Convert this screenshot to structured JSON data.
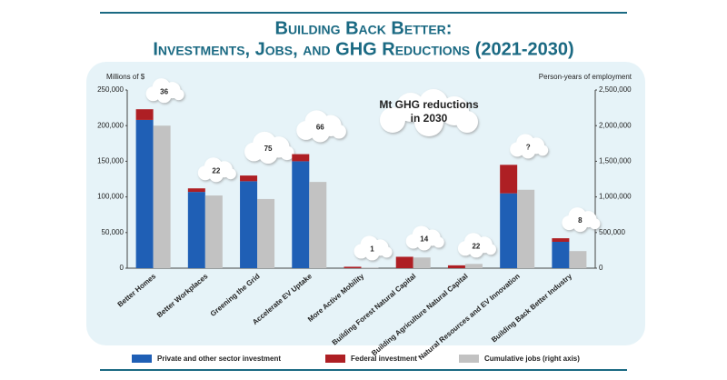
{
  "chart_data": {
    "type": "stacked-bar-dual",
    "title": "Building Back Better:",
    "subtitle": "Investments, Jobs, and GHG Reductions (2021-2030)",
    "y_label": "Millions of $",
    "y2_label": "Person-years of employment",
    "categories": [
      "Better Homes",
      "Better Workplaces",
      "Greening the Grid",
      "Accelerate EV Uptake",
      "More Active Mobility",
      "Building Forest Natural Capital",
      "Building Agriculture Natural Capital",
      "Natural Resources and EV Innovation",
      "Building Back Better Industry"
    ],
    "series": [
      {
        "name": "Private and other sector investment",
        "color": "#1f5fb5",
        "values": [
          208000,
          107000,
          122000,
          150000,
          0,
          0,
          0,
          105000,
          37000
        ]
      },
      {
        "name": "Federal investment",
        "color": "#ae1f24",
        "values": [
          15000,
          5000,
          8000,
          10000,
          2000,
          16000,
          4000,
          40000,
          5000
        ]
      },
      {
        "name": "Cumulative jobs (right axis)",
        "color": "#c2c2c2",
        "axis": "y2",
        "values": [
          2000000,
          1020000,
          970000,
          1210000,
          10000,
          150000,
          60000,
          1100000,
          240000
        ]
      }
    ],
    "ghg_legend": "Mt GHG reductions in 2030",
    "ghg_labels": [
      "36",
      "22",
      "75",
      "66",
      "1",
      "14",
      "22",
      "?",
      "8"
    ],
    "ylim": [
      0,
      250000
    ],
    "yticks": [
      0,
      {
        "value": 50000,
        "label": "50,000"
      },
      {
        "value": 100000,
        "label": "100,000"
      },
      {
        "value": 150000,
        "label": "150,000"
      },
      {
        "value": 200000,
        "label": "200,000"
      },
      {
        "value": 250000,
        "label": "250,000"
      }
    ],
    "y2lim": [
      0,
      2500000
    ],
    "y2ticks": [
      0,
      {
        "value": 500000,
        "label": "500,000"
      },
      {
        "value": 1000000,
        "label": "1,000,000"
      },
      {
        "value": 1500000,
        "label": "1,500,000"
      },
      {
        "value": 2000000,
        "label": "2,000,000"
      },
      {
        "value": 2500000,
        "label": "2,500,000"
      }
    ]
  }
}
